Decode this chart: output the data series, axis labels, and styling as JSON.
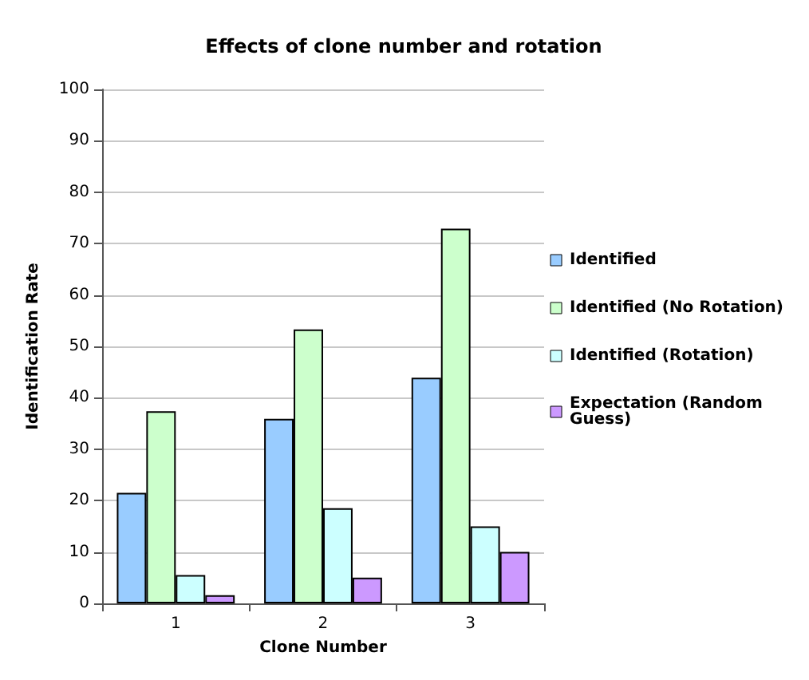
{
  "chart_data": {
    "type": "bar",
    "title": "Effects of clone number and rotation",
    "xlabel": "Clone Number",
    "ylabel": "Identification Rate",
    "categories": [
      "1",
      "2",
      "3"
    ],
    "series": [
      {
        "name": "Identified",
        "color": "#99ccff",
        "values": [
          21.5,
          35.9,
          43.9
        ]
      },
      {
        "name": "Identified (No Rotation)",
        "color": "#ccffcc",
        "values": [
          37.4,
          53.3,
          72.9
        ]
      },
      {
        "name": "Identified (Rotation)",
        "color": "#ccffff",
        "values": [
          5.5,
          18.5,
          15
        ]
      },
      {
        "name": "Expectation (Random Guess)",
        "color": "#cc99ff",
        "values": [
          1.6,
          5,
          10
        ]
      }
    ],
    "ylim": [
      0,
      100
    ],
    "yticks": [
      0,
      10,
      20,
      30,
      40,
      50,
      60,
      70,
      80,
      90,
      100
    ],
    "grid": "y",
    "legend": "right"
  }
}
